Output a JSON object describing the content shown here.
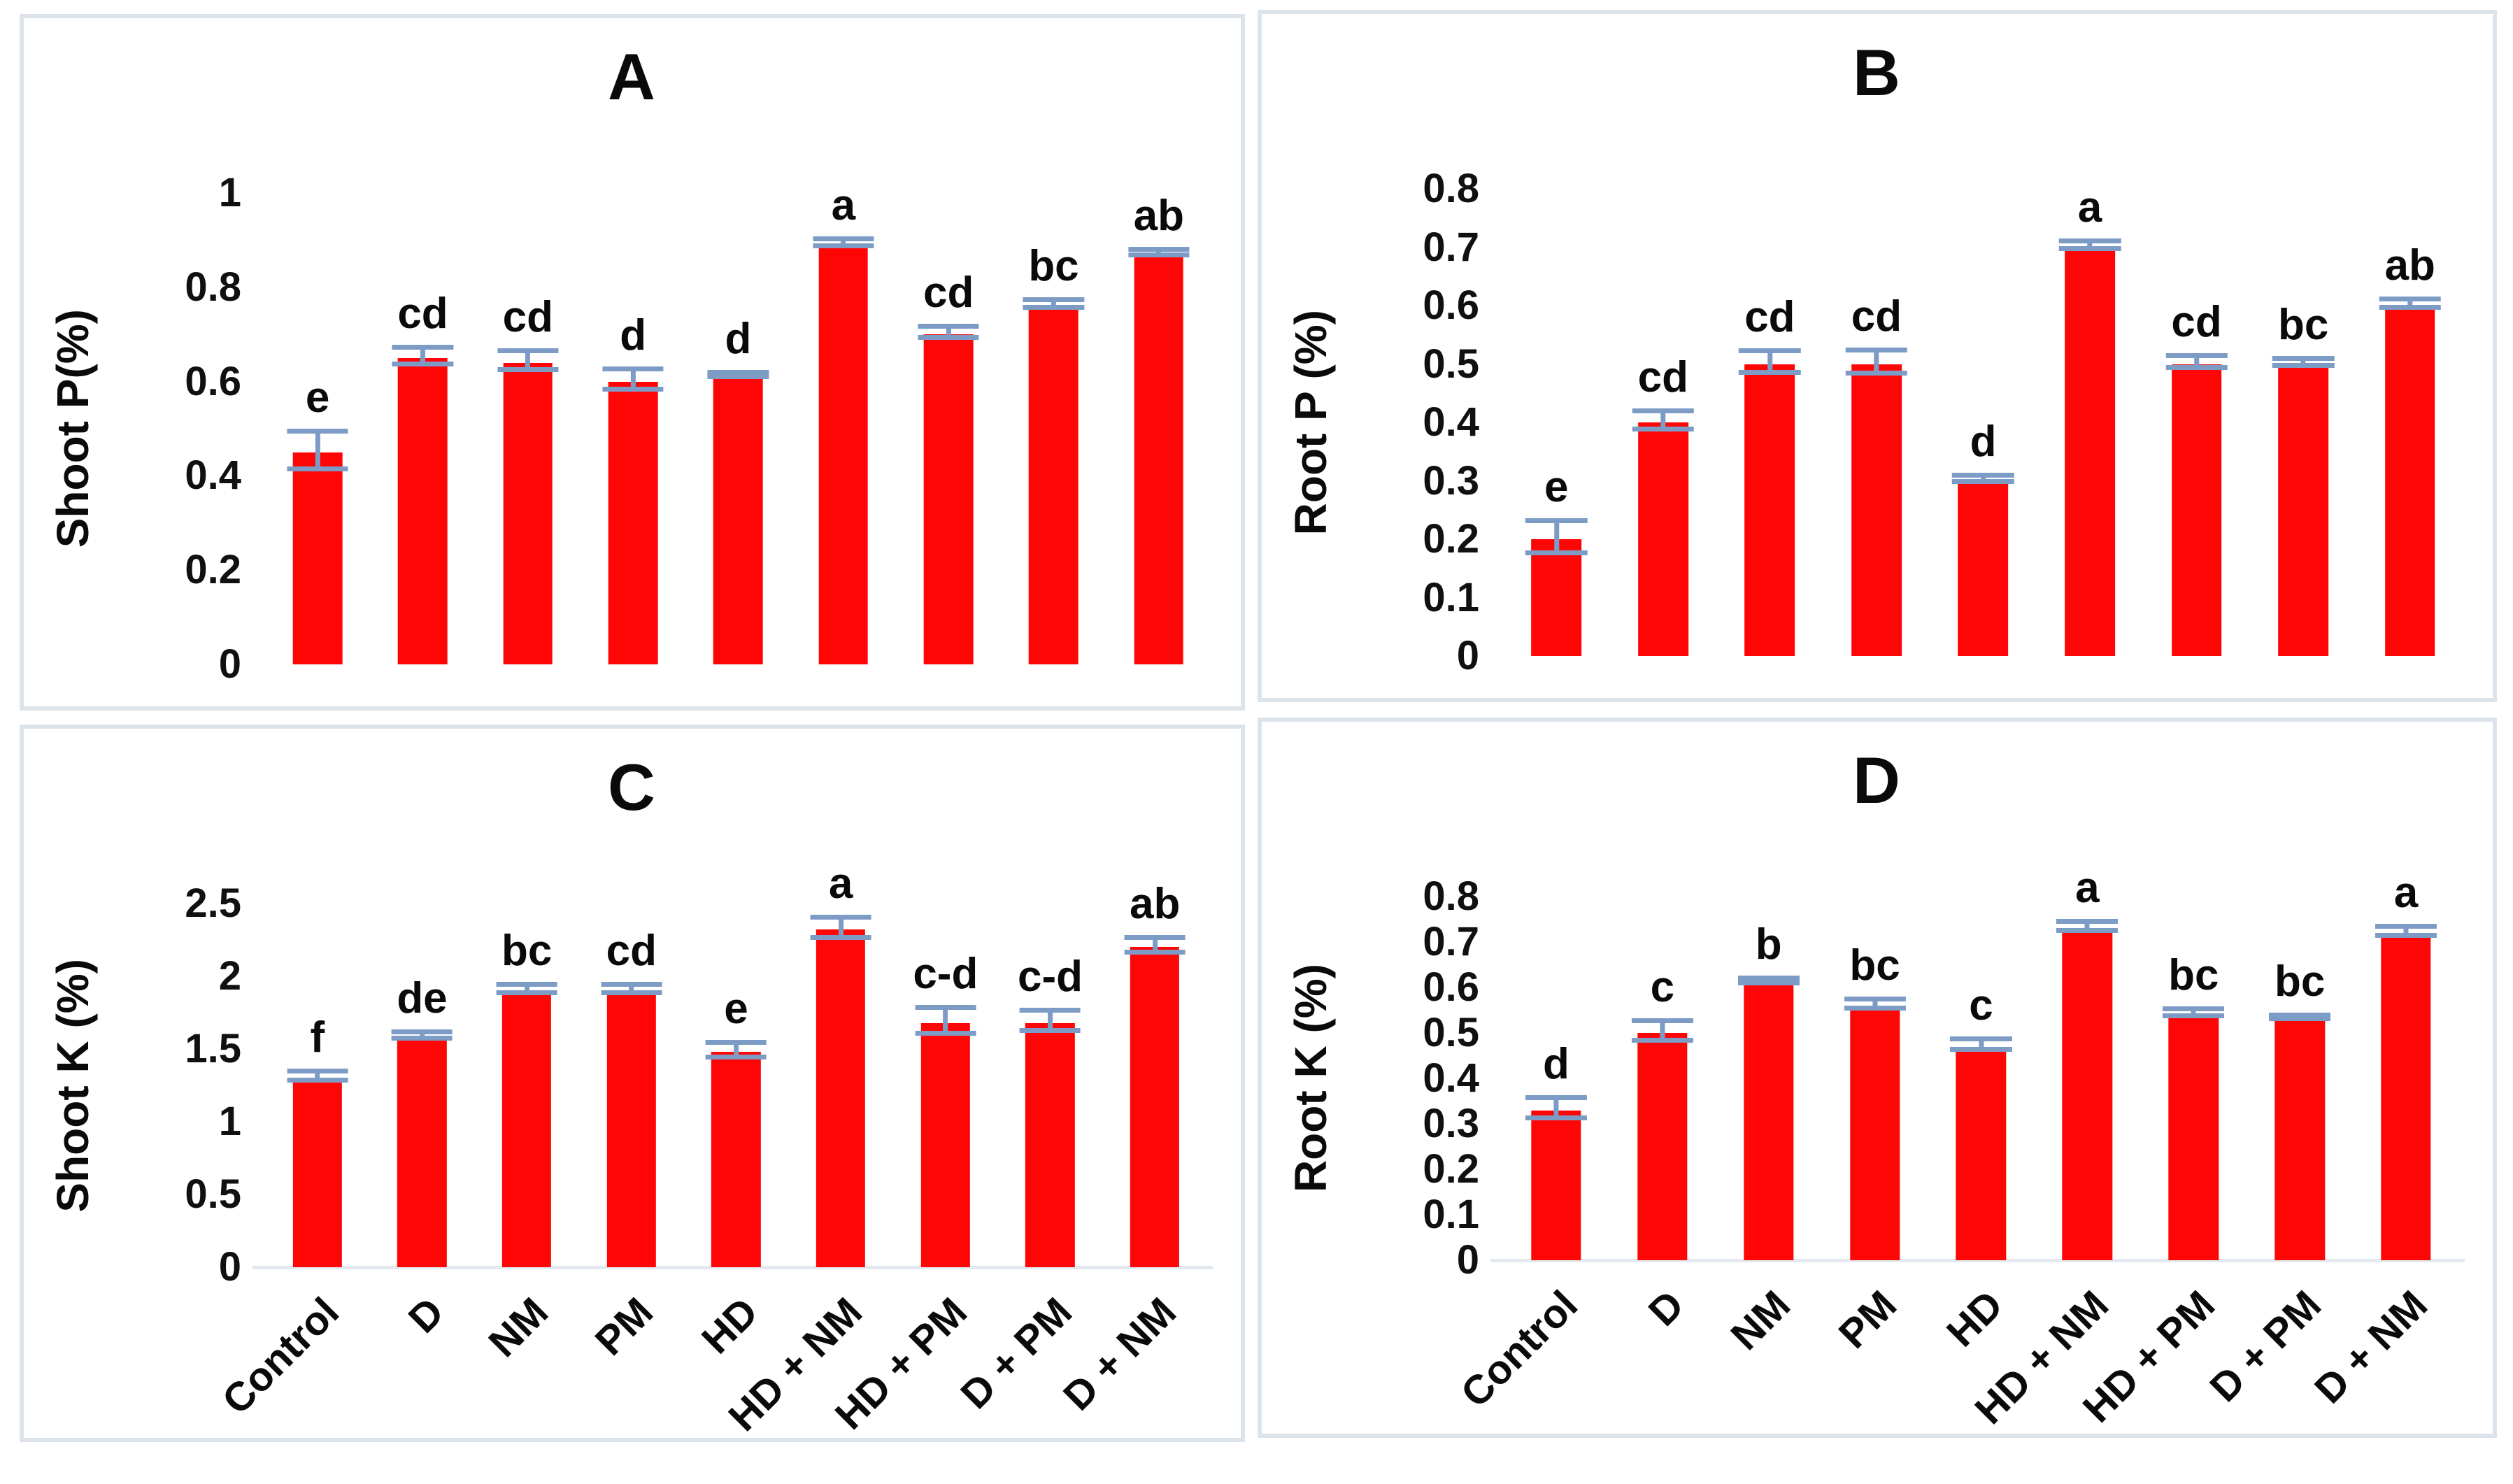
{
  "figure": {
    "bar_color": "#fe0606",
    "error_bar_color": "#7d9cc5",
    "panel_border_color": "#dce3eb",
    "text_color": "#0a0a0a",
    "background_color": "#ffffff",
    "panel_letters": [
      "A",
      "B",
      "C",
      "D"
    ]
  },
  "chart_data": [
    {
      "type": "bar",
      "title": "A",
      "ylabel": "Shoot P(%)",
      "xlabel": "",
      "categories": [
        "Control",
        "D",
        "NM",
        "PM",
        "HD",
        "HD + NM",
        "HD + PM",
        "D + PM",
        "D + NM"
      ],
      "values": [
        0.45,
        0.65,
        0.64,
        0.6,
        0.61,
        0.89,
        0.7,
        0.76,
        0.87
      ],
      "errors": [
        0.04,
        0.018,
        0.02,
        0.022,
        0.004,
        0.007,
        0.012,
        0.008,
        0.006
      ],
      "letters": [
        "e",
        "cd",
        "cd",
        "d",
        "d",
        "a",
        "cd",
        "bc",
        "ab"
      ],
      "ylim": [
        0,
        1
      ],
      "yticks": [
        "0",
        "0.2",
        "0.4",
        "0.6",
        "0.8",
        "1"
      ],
      "ytick_values": [
        0,
        0.2,
        0.4,
        0.6,
        0.8,
        1
      ],
      "grid": false,
      "legend": false,
      "show_x_labels": false
    },
    {
      "type": "bar",
      "title": "B",
      "ylabel": "Root P (%)",
      "xlabel": "",
      "categories": [
        "Control",
        "D",
        "NM",
        "PM",
        "HD",
        "HD + NM",
        "HD + PM",
        "D + PM",
        "D + NM"
      ],
      "values": [
        0.2,
        0.4,
        0.5,
        0.5,
        0.3,
        0.7,
        0.5,
        0.5,
        0.6
      ],
      "errors": [
        0.028,
        0.015,
        0.018,
        0.02,
        0.005,
        0.007,
        0.01,
        0.006,
        0.007
      ],
      "letters": [
        "e",
        "cd",
        "cd",
        "cd",
        "d",
        "a",
        "cd",
        "bc",
        "ab"
      ],
      "ylim": [
        0,
        0.8
      ],
      "yticks": [
        "0",
        "0.1",
        "0.2",
        "0.3",
        "0.4",
        "0.5",
        "0.6",
        "0.7",
        "0.8"
      ],
      "ytick_values": [
        0,
        0.1,
        0.2,
        0.3,
        0.4,
        0.5,
        0.6,
        0.7,
        0.8
      ],
      "grid": false,
      "legend": false,
      "show_x_labels": false
    },
    {
      "type": "bar",
      "title": "C",
      "ylabel": "Shoot K (%)",
      "xlabel": "",
      "categories": [
        "Control",
        "D",
        "NM",
        "PM",
        "HD",
        "HD + NM",
        "HD + PM",
        "D + PM",
        "D + NM"
      ],
      "values": [
        1.3,
        1.58,
        1.9,
        1.9,
        1.48,
        2.32,
        1.68,
        1.68,
        2.2
      ],
      "errors": [
        0.03,
        0.02,
        0.03,
        0.03,
        0.05,
        0.07,
        0.09,
        0.07,
        0.05
      ],
      "letters": [
        "f",
        "de",
        "bc",
        "cd",
        "e",
        "a",
        "c-d",
        "c-d",
        "ab"
      ],
      "ylim": [
        0,
        2.5
      ],
      "yticks": [
        "0",
        "0.5",
        "1",
        "1.5",
        "2",
        "2.5"
      ],
      "ytick_values": [
        0,
        0.5,
        1,
        1.5,
        2,
        2.5
      ],
      "grid": false,
      "legend": false,
      "show_x_labels": true
    },
    {
      "type": "bar",
      "title": "D",
      "ylabel": "Root K (%)",
      "xlabel": "",
      "categories": [
        "Control",
        "D",
        "NM",
        "PM",
        "HD",
        "HD + NM",
        "HD + PM",
        "D + PM",
        "D + NM"
      ],
      "values": [
        0.33,
        0.5,
        0.61,
        0.56,
        0.47,
        0.73,
        0.54,
        0.53,
        0.72
      ],
      "errors": [
        0.022,
        0.022,
        0.006,
        0.01,
        0.012,
        0.01,
        0.008,
        0.004,
        0.01
      ],
      "letters": [
        "d",
        "c",
        "b",
        "bc",
        "c",
        "a",
        "bc",
        "bc",
        "a"
      ],
      "ylim": [
        0,
        0.8
      ],
      "yticks": [
        "0",
        "0.1",
        "0.2",
        "0.3",
        "0.4",
        "0.5",
        "0.6",
        "0.7",
        "0.8"
      ],
      "ytick_values": [
        0,
        0.1,
        0.2,
        0.3,
        0.4,
        0.5,
        0.6,
        0.7,
        0.8
      ],
      "grid": false,
      "legend": false,
      "show_x_labels": true
    }
  ]
}
